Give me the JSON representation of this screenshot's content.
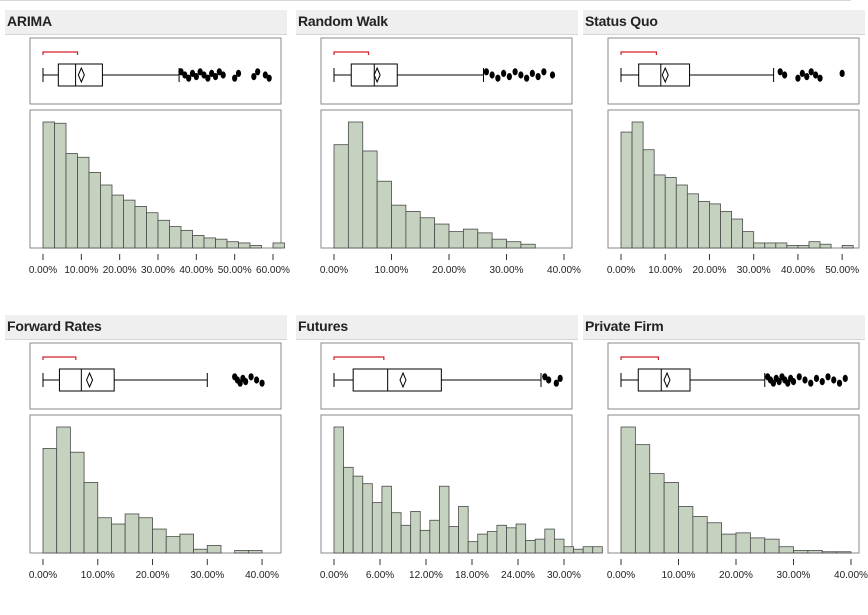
{
  "colors": {
    "bar_fill": "#c6d2c0",
    "bar_stroke": "#4a4a4a",
    "outlier": "#000000",
    "bracket": "#d0202a",
    "header_bg": "#efefef"
  },
  "chart_data": [
    {
      "type": "histogram",
      "title": "ARIMA",
      "xlim": [
        0.0,
        0.6
      ],
      "bin_width": 0.03,
      "bin_start": 0.0,
      "counts": [
        100,
        99,
        75,
        72,
        60,
        50,
        42,
        38,
        33,
        28,
        22,
        17,
        14,
        10,
        8,
        7,
        5,
        4,
        2,
        0,
        4
      ],
      "tick_values": [
        0.0,
        0.1,
        0.2,
        0.3,
        0.4,
        0.5,
        0.6
      ],
      "tick_labels": [
        "0.00%",
        "10.00%",
        "20.00%",
        "30.00%",
        "40.00%",
        "50.00%",
        "60.00%"
      ],
      "box": {
        "whisker_low": 0.0,
        "q1": 0.04,
        "median": 0.085,
        "mean": 0.1,
        "q3": 0.155,
        "whisker_high": 0.355,
        "shortest_half": [
          0.0,
          0.09
        ]
      },
      "outliers": [
        0.36,
        0.37,
        0.38,
        0.39,
        0.4,
        0.41,
        0.42,
        0.43,
        0.44,
        0.45,
        0.46,
        0.47,
        0.5,
        0.51,
        0.55,
        0.56,
        0.58,
        0.59
      ]
    },
    {
      "type": "histogram",
      "title": "Random Walk",
      "xlim": [
        0.0,
        0.4
      ],
      "bin_width": 0.025,
      "bin_start": 0.0,
      "counts": [
        82,
        100,
        77,
        53,
        34,
        29,
        24,
        19,
        13,
        15,
        12,
        7,
        5,
        3
      ],
      "tick_values": [
        0.0,
        0.1,
        0.2,
        0.3,
        0.4
      ],
      "tick_labels": [
        "0.00%",
        "10.00%",
        "20.00%",
        "30.00%",
        "40.00%"
      ],
      "box": {
        "whisker_low": 0.0,
        "q1": 0.03,
        "median": 0.07,
        "mean": 0.075,
        "q3": 0.11,
        "whisker_high": 0.26,
        "shortest_half": [
          0.0,
          0.06
        ]
      },
      "outliers": [
        0.265,
        0.275,
        0.285,
        0.295,
        0.305,
        0.315,
        0.325,
        0.335,
        0.345,
        0.355,
        0.365,
        0.38
      ]
    },
    {
      "type": "histogram",
      "title": "Status Quo",
      "xlim": [
        0.0,
        0.52
      ],
      "bin_width": 0.025,
      "bin_start": 0.0,
      "counts": [
        92,
        100,
        78,
        58,
        56,
        50,
        43,
        37,
        35,
        29,
        23,
        13,
        4,
        4,
        4,
        2,
        2,
        5,
        3,
        0,
        2
      ],
      "tick_values": [
        0.0,
        0.1,
        0.2,
        0.3,
        0.4,
        0.5
      ],
      "tick_labels": [
        "0.00%",
        "10.00%",
        "20.00%",
        "30.00%",
        "40.00%",
        "50.00%"
      ],
      "box": {
        "whisker_low": 0.0,
        "q1": 0.04,
        "median": 0.09,
        "mean": 0.1,
        "q3": 0.155,
        "whisker_high": 0.345,
        "shortest_half": [
          0.0,
          0.08
        ]
      },
      "outliers": [
        0.36,
        0.37,
        0.4,
        0.41,
        0.42,
        0.43,
        0.44,
        0.45,
        0.5
      ]
    },
    {
      "type": "histogram",
      "title": "Forward Rates",
      "xlim": [
        0.0,
        0.42
      ],
      "bin_width": 0.025,
      "bin_start": 0.0,
      "counts": [
        83,
        100,
        80,
        56,
        28,
        23,
        31,
        28,
        19,
        13,
        15,
        3,
        6,
        0,
        2,
        2
      ],
      "tick_values": [
        0.0,
        0.1,
        0.2,
        0.3,
        0.4
      ],
      "tick_labels": [
        "0.00%",
        "10.00%",
        "20.00%",
        "30.00%",
        "40.00%"
      ],
      "box": {
        "whisker_low": 0.0,
        "q1": 0.03,
        "median": 0.07,
        "mean": 0.085,
        "q3": 0.13,
        "whisker_high": 0.3,
        "shortest_half": [
          0.0,
          0.06
        ]
      },
      "outliers": [
        0.35,
        0.355,
        0.36,
        0.365,
        0.37,
        0.38,
        0.39,
        0.4
      ]
    },
    {
      "type": "histogram",
      "title": "Futures",
      "xlim": [
        0.0,
        0.3
      ],
      "bin_width": 0.0125,
      "bin_start": 0.0,
      "counts": [
        100,
        68,
        61,
        55,
        40,
        53,
        32,
        22,
        33,
        18,
        26,
        53,
        21,
        37,
        9,
        15,
        17,
        22,
        20,
        23,
        10,
        11,
        19,
        11,
        5,
        3,
        5,
        5
      ],
      "tick_values": [
        0.0,
        0.06,
        0.12,
        0.18,
        0.24,
        0.3
      ],
      "tick_labels": [
        "0.00%",
        "6.00%",
        "12.00%",
        "18.00%",
        "24.00%",
        "30.00%"
      ],
      "box": {
        "whisker_low": 0.0,
        "q1": 0.025,
        "median": 0.07,
        "mean": 0.09,
        "q3": 0.14,
        "whisker_high": 0.27,
        "shortest_half": [
          0.0,
          0.065
        ]
      },
      "outliers": [
        0.275,
        0.28,
        0.29,
        0.295
      ]
    },
    {
      "type": "histogram",
      "title": "Private Firm",
      "xlim": [
        0.0,
        0.4
      ],
      "bin_width": 0.025,
      "bin_start": 0.0,
      "counts": [
        100,
        86,
        63,
        56,
        37,
        29,
        24,
        15,
        16,
        12,
        11,
        5,
        2,
        2,
        1,
        1
      ],
      "tick_values": [
        0.0,
        0.1,
        0.2,
        0.3,
        0.4
      ],
      "tick_labels": [
        "0.00%",
        "10.00%",
        "20.00%",
        "30.00%",
        "40.00%"
      ],
      "box": {
        "whisker_low": 0.0,
        "q1": 0.03,
        "median": 0.07,
        "mean": 0.08,
        "q3": 0.12,
        "whisker_high": 0.25,
        "shortest_half": [
          0.0,
          0.065
        ]
      },
      "outliers": [
        0.255,
        0.26,
        0.265,
        0.27,
        0.275,
        0.28,
        0.285,
        0.29,
        0.295,
        0.3,
        0.31,
        0.32,
        0.33,
        0.34,
        0.35,
        0.36,
        0.37,
        0.38,
        0.39
      ]
    }
  ]
}
